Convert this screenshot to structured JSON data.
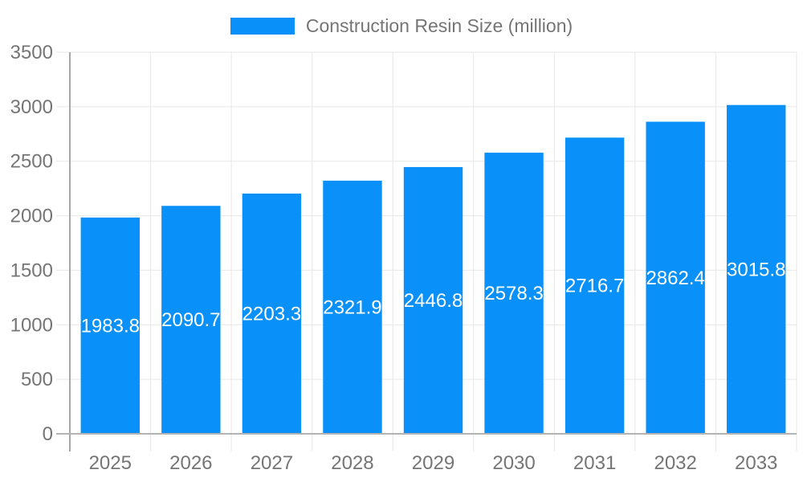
{
  "chart_data": {
    "type": "bar",
    "title": "Construction Resin Size (million)",
    "legend_position": "top",
    "legend_entries": [
      "Construction Resin Size (million)"
    ],
    "categories": [
      "2025",
      "2026",
      "2027",
      "2028",
      "2029",
      "2030",
      "2031",
      "2032",
      "2033"
    ],
    "values": [
      1983.8,
      2090.7,
      2203.3,
      2321.9,
      2446.8,
      2578.3,
      2716.7,
      2862.4,
      3015.8
    ],
    "xlabel": "",
    "ylabel": "",
    "ylim": [
      0,
      3500
    ],
    "ytick_interval": 500,
    "ytick_labels": [
      "0",
      "500",
      "1000",
      "1500",
      "2000",
      "2500",
      "3000",
      "3500"
    ],
    "grid": true,
    "bar_labels_inside": true,
    "colors": {
      "bar": "#0991f9",
      "grid": "#e7e7e7",
      "axis_line": "#b3b3b3",
      "y_axis_line": "#8c8c8c",
      "tick_text": "#757575",
      "legend_text": "#757575",
      "bar_label_text": "#ffffff",
      "background": "#ffffff"
    }
  }
}
